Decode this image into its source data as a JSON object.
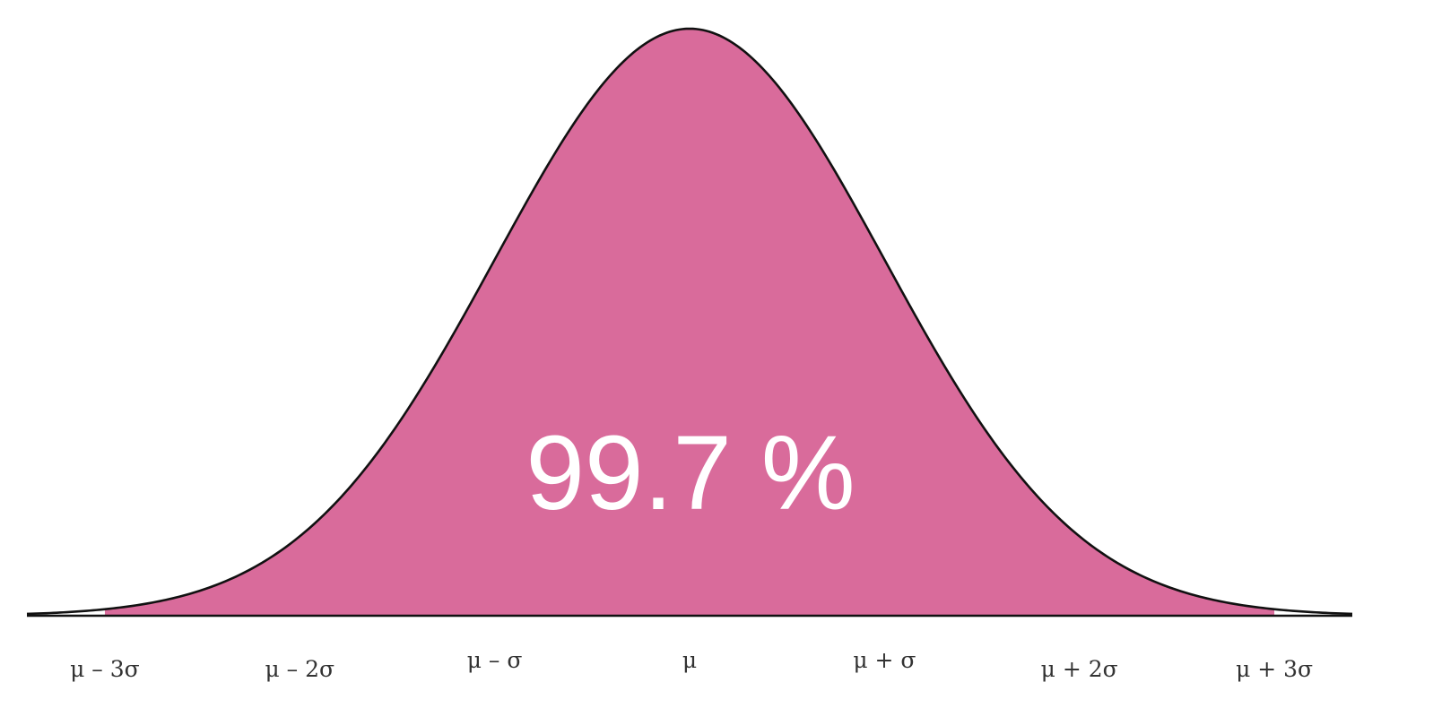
{
  "chart_data": {
    "type": "area",
    "title": "",
    "distribution": "normal",
    "x_range": [
      -3.4,
      3.4
    ],
    "shaded_interval": [
      -3,
      3
    ],
    "shaded_percent": 99.7,
    "shaded_label": "99.7 %",
    "x_ticks": [
      {
        "value": -3,
        "label": "μ – 3σ"
      },
      {
        "value": -2,
        "label": "μ – 2σ"
      },
      {
        "value": -1,
        "label": "μ – σ"
      },
      {
        "value": 0,
        "label": "μ"
      },
      {
        "value": 1,
        "label": "μ + σ"
      },
      {
        "value": 2,
        "label": "μ + 2σ"
      },
      {
        "value": 3,
        "label": "μ + 3σ"
      }
    ],
    "colors": {
      "fill": "#d96b9b",
      "curve": "#111111",
      "tick_text": "#333333",
      "label_text": "#ffffff"
    }
  }
}
